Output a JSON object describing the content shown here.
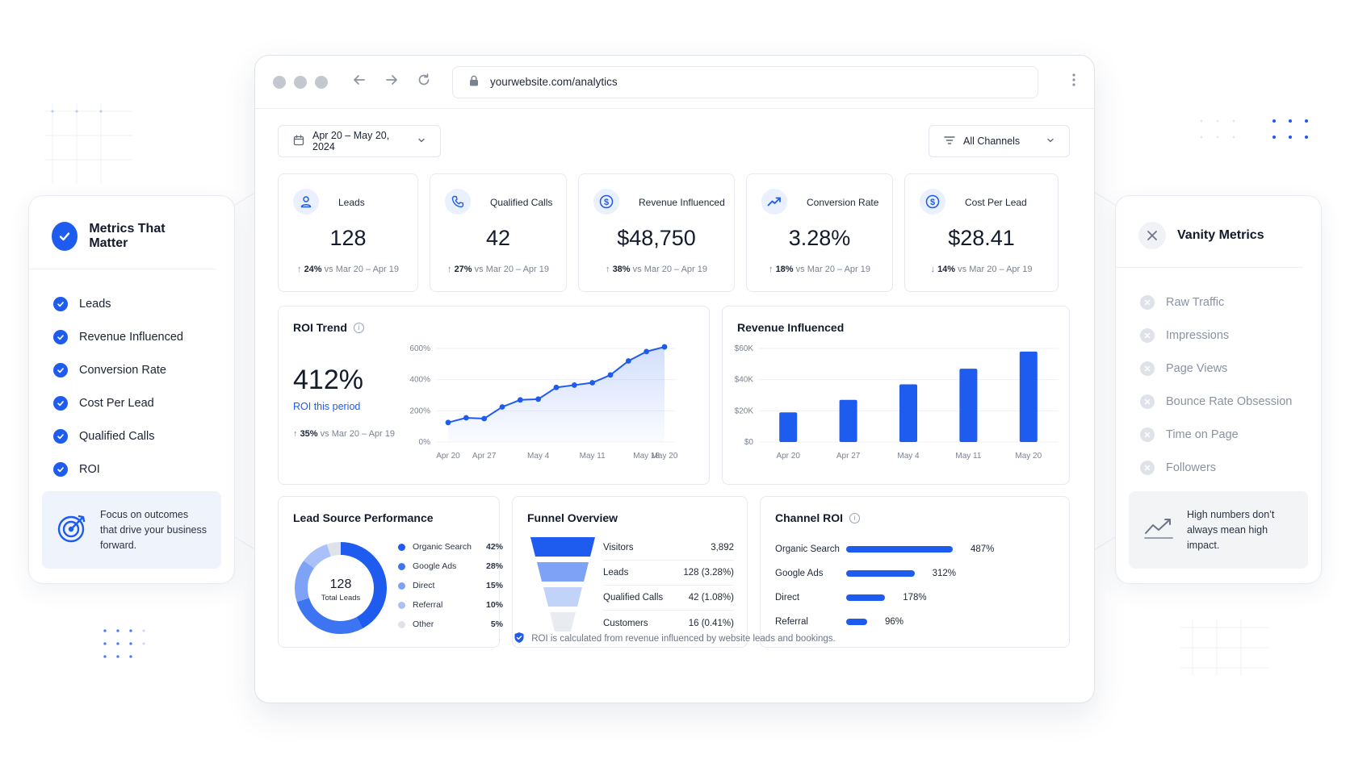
{
  "browser": {
    "url": "yourwebsite.com/analytics"
  },
  "filters": {
    "date_range": "Apr 20 – May 20, 2024",
    "channel": "All Channels"
  },
  "kpis": [
    {
      "label": "Leads",
      "value": "128",
      "change": "24%",
      "compare": "vs Mar 20 – Apr 19",
      "direction": "up",
      "icon": "user-icon"
    },
    {
      "label": "Qualified Calls",
      "value": "42",
      "change": "27%",
      "compare": "vs Mar 20 – Apr 19",
      "direction": "up",
      "icon": "phone-icon"
    },
    {
      "label": "Revenue Influenced",
      "value": "$48,750",
      "change": "38%",
      "compare": "vs Mar 20 – Apr 19",
      "direction": "up",
      "icon": "dollar-icon"
    },
    {
      "label": "Conversion Rate",
      "value": "3.28%",
      "change": "18%",
      "compare": "vs Mar 20 – Apr 19",
      "direction": "up",
      "icon": "trend-up-icon"
    },
    {
      "label": "Cost Per Lead",
      "value": "$28.41",
      "change": "14%",
      "compare": "vs Mar 20 – Apr 19",
      "direction": "down",
      "icon": "dollar-icon"
    }
  ],
  "roi_trend": {
    "title": "ROI Trend",
    "big_value": "412%",
    "sub_label": "ROI this period",
    "change": "35%",
    "compare": "vs Mar 20 – Apr 19"
  },
  "revenue_panel": {
    "title": "Revenue Influenced"
  },
  "lead_source": {
    "title": "Lead Source Performance",
    "center_value": "128",
    "center_label": "Total Leads"
  },
  "funnel": {
    "title": "Funnel Overview",
    "rows": [
      {
        "label": "Visitors",
        "value": "3,892"
      },
      {
        "label": "Leads",
        "value": "128 (3.28%)"
      },
      {
        "label": "Qualified Calls",
        "value": "42 (1.08%)"
      },
      {
        "label": "Customers",
        "value": "16 (0.41%)"
      }
    ]
  },
  "channel_roi": {
    "title": "Channel ROI",
    "rows": [
      {
        "label": "Organic Search",
        "value": 487,
        "text": "487%"
      },
      {
        "label": "Google Ads",
        "value": 312,
        "text": "312%"
      },
      {
        "label": "Direct",
        "value": 178,
        "text": "178%"
      },
      {
        "label": "Referral",
        "value": 96,
        "text": "96%"
      }
    ]
  },
  "footer_note": "ROI is calculated from revenue influenced by website leads and bookings.",
  "left_card": {
    "title": "Metrics That Matter",
    "items": [
      "Leads",
      "Revenue Influenced",
      "Conversion Rate",
      "Cost Per Lead",
      "Qualified Calls",
      "ROI"
    ],
    "note": "Focus on outcomes that drive your business forward."
  },
  "right_card": {
    "title": "Vanity Metrics",
    "items": [
      "Raw Traffic",
      "Impressions",
      "Page Views",
      "Bounce Rate Obsession",
      "Time on Page",
      "Followers"
    ],
    "note": "High numbers don’t always mean high impact."
  },
  "colors": {
    "accent": "#1e5bef",
    "accent_light": "#eaf0fd"
  },
  "chart_data": [
    {
      "type": "line",
      "x": [
        "Apr 20",
        "Apr 23",
        "Apr 27",
        "Apr 30",
        "May 2",
        "May 4",
        "May 7",
        "May 9",
        "May 11",
        "May 14",
        "May 16",
        "May 18",
        "May 20"
      ],
      "x_ticks": [
        "Apr 20",
        "Apr 27",
        "May 4",
        "May 11",
        "May 18",
        "May 20"
      ],
      "values": [
        125,
        155,
        150,
        225,
        270,
        275,
        350,
        365,
        380,
        430,
        520,
        580,
        610
      ],
      "y_ticks": [
        "0%",
        "200%",
        "400%",
        "600%"
      ],
      "ylim": [
        0,
        600
      ],
      "grid": true
    },
    {
      "type": "bar",
      "categories": [
        "Apr 20",
        "Apr 27",
        "May 4",
        "May 11",
        "May 20"
      ],
      "values": [
        19000,
        27000,
        37000,
        47000,
        58000
      ],
      "y_ticks": [
        "$0",
        "$20K",
        "$40K",
        "$60K"
      ],
      "ylim": [
        0,
        60000
      ],
      "grid": true
    },
    {
      "type": "pie",
      "categories": [
        "Organic Search",
        "Google Ads",
        "Direct",
        "Referral",
        "Other"
      ],
      "values": [
        42,
        28,
        15,
        10,
        5
      ],
      "labels": [
        "42%",
        "28%",
        "15%",
        "10%",
        "5%"
      ],
      "colors": [
        "#1e5bef",
        "#3d74f2",
        "#7da2f6",
        "#a9c1f8",
        "#dfe3e9"
      ]
    }
  ]
}
